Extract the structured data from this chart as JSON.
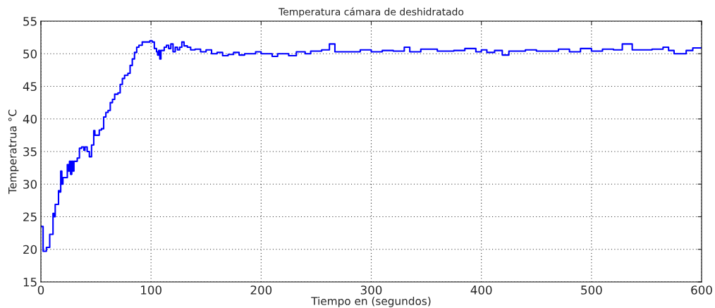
{
  "chart_data": {
    "type": "step",
    "title": "Temperatura cámara de deshidratado",
    "xlabel": "Tiempo en (segundos)",
    "ylabel": "Temperatrua °C",
    "xlim": [
      0,
      600
    ],
    "xticks": [
      0,
      100,
      200,
      300,
      400,
      500,
      600
    ],
    "ylim": [
      15,
      55
    ],
    "yticks": [
      15,
      20,
      25,
      30,
      35,
      40,
      45,
      50,
      55
    ],
    "grid": true,
    "series": [
      {
        "color": "#0000ff",
        "x": [
          0,
          2,
          5,
          8,
          11,
          12,
          13,
          16,
          17,
          18,
          19,
          20,
          22,
          24,
          25,
          26,
          27,
          28,
          29,
          30,
          33,
          35,
          37,
          39,
          40,
          42,
          44,
          46,
          48,
          49,
          51,
          53,
          55,
          57,
          59,
          61,
          63,
          65,
          67,
          70,
          72,
          74,
          76,
          79,
          81,
          83,
          85,
          87,
          89,
          92,
          99,
          101,
          103,
          105,
          106,
          107,
          108,
          109,
          112,
          114,
          116,
          118,
          120,
          122,
          124,
          126,
          128,
          130,
          133,
          136,
          140,
          145,
          150,
          155,
          160,
          165,
          170,
          175,
          180,
          185,
          195,
          200,
          210,
          215,
          225,
          232,
          240,
          245,
          255,
          262,
          267,
          275,
          290,
          300,
          310,
          320,
          330,
          335,
          345,
          360,
          375,
          385,
          395,
          400,
          405,
          412,
          419,
          425,
          440,
          450,
          470,
          480,
          490,
          500,
          510,
          520,
          528,
          537,
          555,
          565,
          570,
          575,
          586,
          592,
          600
        ],
        "values": [
          23.5,
          19.7,
          20.3,
          22.3,
          25.5,
          25.0,
          26.9,
          29.0,
          28.8,
          32.0,
          30.0,
          31.0,
          31.0,
          33.0,
          32.0,
          33.5,
          31.5,
          33.5,
          32.0,
          33.5,
          34.0,
          35.5,
          35.7,
          35.2,
          35.7,
          35.0,
          34.2,
          36.0,
          38.2,
          37.5,
          37.5,
          38.3,
          38.5,
          40.3,
          41.0,
          41.3,
          42.5,
          43.0,
          43.8,
          44.0,
          45.3,
          46.2,
          46.7,
          47.0,
          48.2,
          49.2,
          50.2,
          51.0,
          51.3,
          51.8,
          52.0,
          51.8,
          50.8,
          50.3,
          49.8,
          50.5,
          49.2,
          50.5,
          51.0,
          51.3,
          50.8,
          51.5,
          50.3,
          51.0,
          50.6,
          51.0,
          51.8,
          51.2,
          51.0,
          50.6,
          50.7,
          50.3,
          50.6,
          50.0,
          50.2,
          49.7,
          49.9,
          50.2,
          49.8,
          50.0,
          50.3,
          50.0,
          49.6,
          50.0,
          49.7,
          50.3,
          50.0,
          50.4,
          50.6,
          51.5,
          50.3,
          50.3,
          50.6,
          50.3,
          50.5,
          50.4,
          51.0,
          50.3,
          50.7,
          50.4,
          50.5,
          50.8,
          50.3,
          50.6,
          50.2,
          50.5,
          49.8,
          50.4,
          50.6,
          50.4,
          50.7,
          50.3,
          50.8,
          50.4,
          50.7,
          50.6,
          51.5,
          50.6,
          50.7,
          51.0,
          50.5,
          50.0,
          50.5,
          50.9,
          50.9
        ]
      }
    ]
  }
}
